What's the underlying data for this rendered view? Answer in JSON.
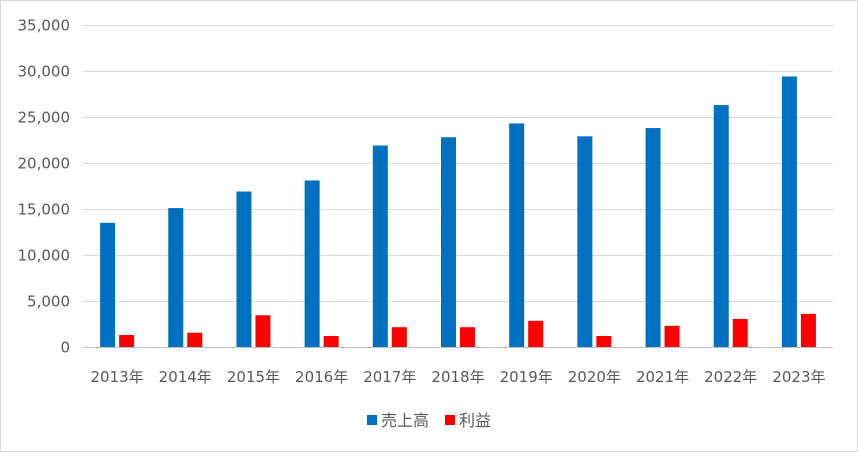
{
  "chart_data": {
    "type": "bar",
    "title": "",
    "xlabel": "",
    "ylabel": "",
    "categories": [
      "2013年",
      "2014年",
      "2015年",
      "2016年",
      "2017年",
      "2018年",
      "2019年",
      "2020年",
      "2021年",
      "2022年",
      "2023年"
    ],
    "series": [
      {
        "name": "売上高",
        "color": "#0070c0",
        "values": [
          13500,
          15100,
          16900,
          18100,
          21900,
          22800,
          24300,
          22900,
          23800,
          26300,
          29400
        ]
      },
      {
        "name": "利益",
        "color": "#ff0000",
        "values": [
          1300,
          1550,
          3450,
          1200,
          2150,
          2150,
          2850,
          1200,
          2300,
          3050,
          3600
        ]
      }
    ],
    "ylim": [
      0,
      35000
    ],
    "yticks": [
      "0",
      "5,000",
      "10,000",
      "15,000",
      "20,000",
      "25,000",
      "30,000",
      "35,000"
    ],
    "grid": true,
    "legend_position": "bottom"
  }
}
